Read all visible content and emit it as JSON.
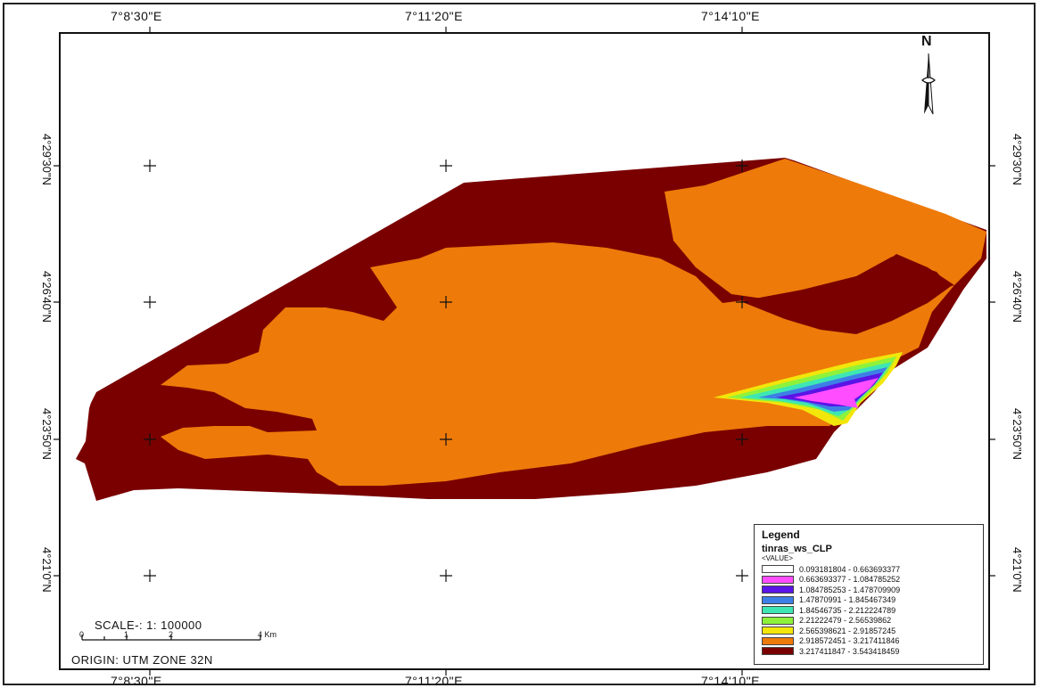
{
  "map": {
    "longitude_labels": [
      "7°8'30\"E",
      "7°11'20\"E",
      "7°14'10\"E"
    ],
    "latitude_labels": [
      "4°29'30\"N",
      "4°26'40\"N",
      "4°23'50\"N",
      "4°21'0\"N"
    ],
    "north_arrow": "N",
    "north_icon": "north-arrow-icon"
  },
  "legend": {
    "title": "Legend",
    "layer": "tinras_ws_CLP",
    "field": "<VALUE>",
    "classes": [
      {
        "label": "0.093181804 - 0.663693377",
        "color": "#ffffff"
      },
      {
        "label": "0.663693377 - 1.084785252",
        "color": "#ff4dff"
      },
      {
        "label": "1.084785253 - 1.478709909",
        "color": "#5a14e6"
      },
      {
        "label": "1.47870991 - 1.845467349",
        "color": "#3d7fe6"
      },
      {
        "label": "1.84546735 - 2.212224789",
        "color": "#3ee6b4"
      },
      {
        "label": "2.21222479 - 2.56539862",
        "color": "#8ef23c"
      },
      {
        "label": "2.565398621 - 2.91857245",
        "color": "#f2e60a"
      },
      {
        "label": "2.918572451 - 3.217411846",
        "color": "#ee7a0a"
      },
      {
        "label": "3.217411847 - 3.543418459",
        "color": "#7a0000"
      }
    ]
  },
  "scalebar": {
    "label": "SCALE-: 1: 100000",
    "ticks": [
      "0",
      "1",
      "2",
      "4 Km"
    ],
    "origin": "ORIGIN: UTM ZONE 32N"
  }
}
